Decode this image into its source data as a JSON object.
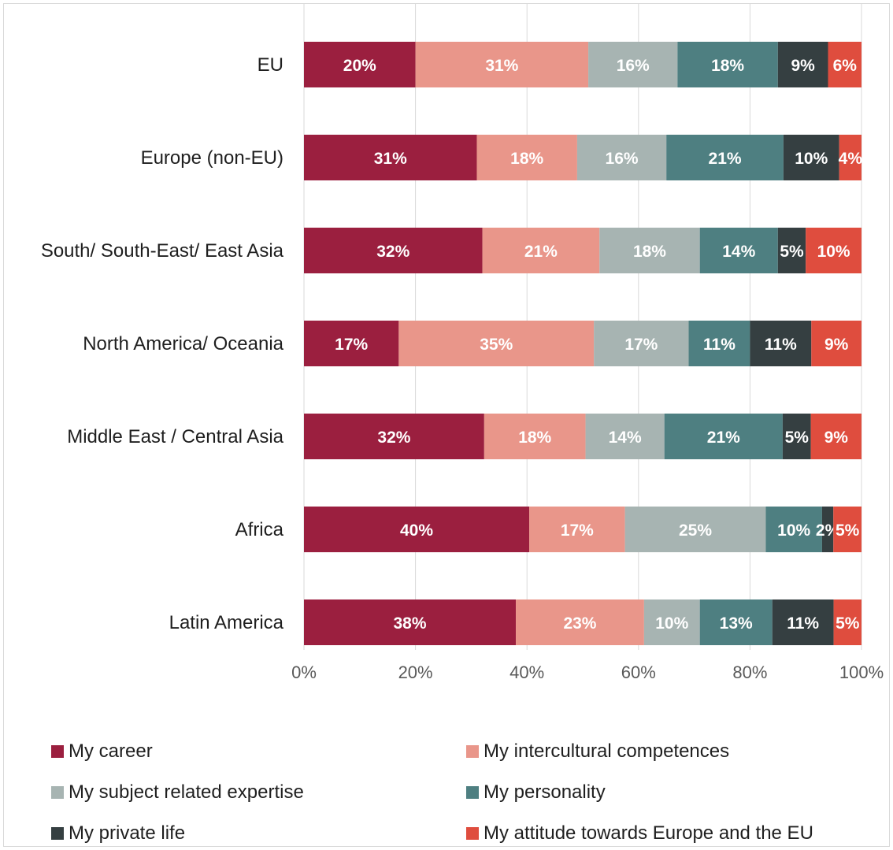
{
  "chart_data": {
    "type": "bar",
    "orientation": "horizontal",
    "stacked": true,
    "categories": [
      "EU",
      "Europe (non-EU)",
      "South/ South-East/ East Asia",
      "North America/ Oceania",
      "Middle East / Central Asia",
      "Africa",
      "Latin America"
    ],
    "series": [
      {
        "name": "My career",
        "color": "#9b1f3f",
        "values": [
          20,
          31,
          32,
          17,
          32,
          40,
          38
        ],
        "labels": [
          "20%",
          "31%",
          "32%",
          "17%",
          "32%",
          "40%",
          "38%"
        ]
      },
      {
        "name": "My intercultural competences",
        "color": "#e9968a",
        "values": [
          31,
          18,
          21,
          35,
          18,
          17,
          23
        ],
        "labels": [
          "31%",
          "18%",
          "21%",
          "35%",
          "18%",
          "17%",
          "23%"
        ]
      },
      {
        "name": "My subject related expertise",
        "color": "#a7b4b2",
        "values": [
          16,
          16,
          18,
          17,
          14,
          25,
          10
        ],
        "labels": [
          "16%",
          "16%",
          "18%",
          "17%",
          "14%",
          "25%",
          "10%"
        ]
      },
      {
        "name": "My personality",
        "color": "#4e7f81",
        "values": [
          18,
          21,
          14,
          11,
          21,
          10,
          13
        ],
        "labels": [
          "18%",
          "21%",
          "14%",
          "11%",
          "21%",
          "10%",
          "13%"
        ]
      },
      {
        "name": "My private life",
        "color": "#353f41",
        "values": [
          9,
          10,
          5,
          11,
          5,
          2,
          11
        ],
        "labels": [
          "9%",
          "10%",
          "5%",
          "11%",
          "5%",
          "2%",
          "11%"
        ]
      },
      {
        "name": "My attitude towards Europe and the EU",
        "color": "#df4d3e",
        "values": [
          6,
          4,
          10,
          9,
          9,
          5,
          5
        ],
        "labels": [
          "6%",
          "4%",
          "10%",
          "9%",
          "9%",
          "5%",
          "5%"
        ]
      }
    ],
    "xlim": [
      0,
      100
    ],
    "xticks": [
      "0%",
      "20%",
      "40%",
      "60%",
      "80%",
      "100%"
    ],
    "grid": true,
    "legend_position": "bottom"
  }
}
